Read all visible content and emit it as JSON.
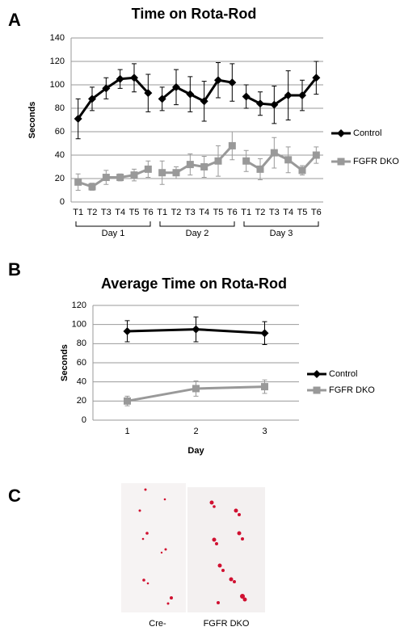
{
  "chart_data": [
    {
      "type": "line",
      "panel": "A",
      "title": "Time on Rota-Rod",
      "y_label": "Seconds",
      "groups": [
        {
          "label": "Day 1",
          "categories": [
            "T1",
            "T2",
            "T3",
            "T4",
            "T5",
            "T6"
          ]
        },
        {
          "label": "Day 2",
          "categories": [
            "T1",
            "T2",
            "T3",
            "T4",
            "T5",
            "T6"
          ]
        },
        {
          "label": "Day 3",
          "categories": [
            "T1",
            "T2",
            "T3",
            "T4",
            "T5",
            "T6"
          ]
        }
      ],
      "series": [
        {
          "name": "Control",
          "color": "#000000",
          "marker": "diamond",
          "values": [
            71,
            88,
            97,
            105,
            106,
            93,
            88,
            98,
            92,
            86,
            104,
            102,
            90,
            84,
            83,
            91,
            91,
            106
          ],
          "errors": [
            17,
            10,
            9,
            8,
            12,
            16,
            10,
            15,
            15,
            17,
            15,
            16,
            10,
            10,
            16,
            21,
            13,
            14
          ]
        },
        {
          "name": "FGFR DKO",
          "color": "#999999",
          "marker": "square",
          "values": [
            17,
            13,
            21,
            21,
            23,
            28,
            25,
            25,
            32,
            30,
            35,
            48,
            35,
            28,
            42,
            36,
            27,
            40
          ],
          "errors": [
            7,
            3,
            6,
            3,
            5,
            7,
            10,
            5,
            9,
            9,
            13,
            12,
            9,
            9,
            13,
            11,
            4,
            7
          ]
        }
      ],
      "ylim": [
        0,
        140
      ],
      "yticks": [
        0,
        20,
        40,
        60,
        80,
        100,
        120,
        140
      ],
      "grid": true,
      "legend": "right"
    },
    {
      "type": "line",
      "panel": "B",
      "title": "Average Time on Rota-Rod",
      "x_label": "Day",
      "y_label": "Seconds",
      "categories": [
        "1",
        "2",
        "3"
      ],
      "series": [
        {
          "name": "Control",
          "color": "#000000",
          "marker": "diamond",
          "values": [
            93,
            95,
            91
          ],
          "errors": [
            11,
            13,
            12
          ]
        },
        {
          "name": "FGFR DKO",
          "color": "#999999",
          "marker": "square",
          "values": [
            20,
            33,
            35
          ],
          "errors": [
            5,
            8,
            7
          ]
        }
      ],
      "ylim": [
        0,
        120
      ],
      "yticks": [
        0,
        20,
        40,
        60,
        80,
        100,
        120
      ],
      "grid": true,
      "legend": "right"
    }
  ],
  "images": {
    "panel": "C",
    "labels": [
      "Cre-",
      "FGFR DKO"
    ]
  }
}
